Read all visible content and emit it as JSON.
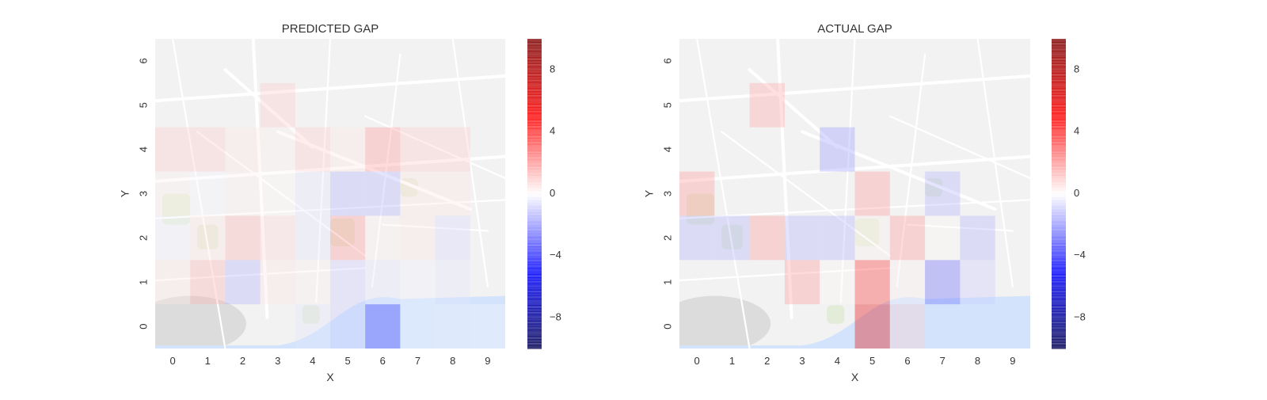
{
  "chart_data": [
    {
      "type": "heatmap",
      "title": "PREDICTED GAP",
      "xlabel": "X",
      "ylabel": "Y",
      "x": [
        0,
        1,
        2,
        3,
        4,
        5,
        6,
        7,
        8,
        9
      ],
      "y": [
        0,
        1,
        2,
        3,
        4,
        5,
        6
      ],
      "background": "street-map",
      "colormap": "seismic",
      "colorbar": {
        "range": [
          -10,
          10
        ],
        "ticks": [
          -8,
          -4,
          0,
          4,
          8
        ]
      },
      "values": [
        [
          null,
          null,
          null,
          null,
          -0.5,
          -1.0,
          -4.0,
          -0.3,
          -0.2,
          -0.1
        ],
        [
          0.5,
          1.5,
          -1.5,
          0.5,
          0.3,
          -1.0,
          -0.5,
          -0.3,
          -0.5,
          null
        ],
        [
          -0.3,
          0.5,
          1.5,
          0.8,
          -0.5,
          2.0,
          0.3,
          0.5,
          -0.8,
          null
        ],
        [
          0.3,
          -0.2,
          0.3,
          0.2,
          -0.5,
          -1.5,
          -1.5,
          0.5,
          0.5,
          null
        ],
        [
          1.0,
          1.0,
          0.5,
          0.3,
          1.0,
          0.5,
          2.0,
          1.0,
          1.0,
          null
        ],
        [
          null,
          null,
          null,
          1.0,
          null,
          null,
          null,
          null,
          null,
          null
        ],
        [
          null,
          null,
          null,
          null,
          null,
          null,
          null,
          null,
          null,
          null
        ]
      ]
    },
    {
      "type": "heatmap",
      "title": "ACTUAL GAP",
      "xlabel": "X",
      "ylabel": "Y",
      "x": [
        0,
        1,
        2,
        3,
        4,
        5,
        6,
        7,
        8,
        9
      ],
      "y": [
        0,
        1,
        2,
        3,
        4,
        5,
        6
      ],
      "background": "street-map",
      "colormap": "seismic",
      "colorbar": {
        "range": [
          -10,
          10
        ],
        "ticks": [
          -8,
          -4,
          0,
          4,
          8
        ]
      },
      "values": [
        [
          null,
          null,
          null,
          null,
          null,
          6.0,
          1.0,
          null,
          null,
          null
        ],
        [
          null,
          null,
          null,
          2.0,
          0.2,
          4.0,
          0.3,
          -3.0,
          -1.0,
          null
        ],
        [
          -1.5,
          -1.5,
          2.0,
          -1.5,
          -1.5,
          0.3,
          2.0,
          0.2,
          -1.5,
          null
        ],
        [
          2.0,
          null,
          null,
          null,
          null,
          2.0,
          null,
          -1.5,
          null,
          null
        ],
        [
          null,
          null,
          null,
          null,
          -2.0,
          null,
          null,
          null,
          null,
          null
        ],
        [
          null,
          null,
          1.8,
          null,
          null,
          null,
          null,
          null,
          null,
          null
        ],
        [
          null,
          null,
          null,
          null,
          null,
          null,
          null,
          null,
          null,
          null
        ]
      ]
    }
  ]
}
